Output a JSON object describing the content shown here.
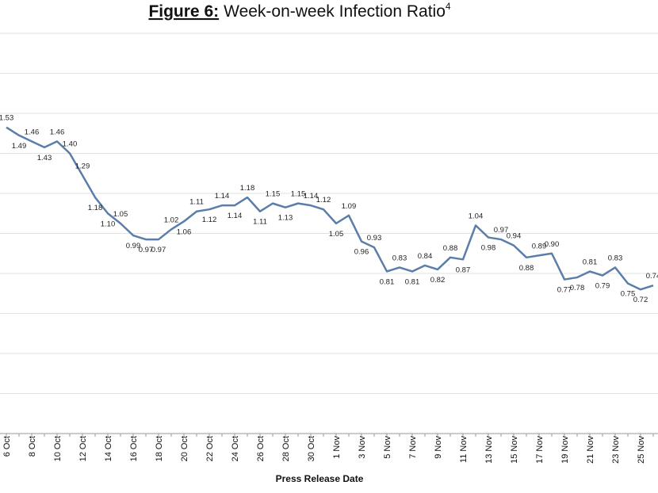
{
  "chart_data": {
    "type": "line",
    "title_prefix": "Figure 6:",
    "title": "Week-on-week Infection Ratio",
    "title_footnote": "4",
    "x_label": "Press Release Date",
    "categories": [
      "6 Oct",
      null,
      "8 Oct",
      null,
      "10 Oct",
      null,
      "12 Oct",
      null,
      "14 Oct",
      null,
      "16 Oct",
      null,
      "18 Oct",
      null,
      "20 Oct",
      null,
      "22 Oct",
      null,
      "24 Oct",
      null,
      "26 Oct",
      null,
      "28 Oct",
      null,
      "30 Oct",
      null,
      "1 Nov",
      null,
      "3 Nov",
      null,
      "5 Nov",
      null,
      "7 Nov",
      null,
      "9 Nov",
      null,
      "11 Nov",
      null,
      "13 Nov",
      null,
      "15 Nov",
      null,
      "17 Nov",
      null,
      "19 Nov",
      null,
      "21 Nov",
      null,
      "23 Nov",
      null,
      "25 Nov",
      null
    ],
    "series": [
      {
        "color": "#5a7ea8",
        "values": [
          1.53,
          1.49,
          1.46,
          1.43,
          1.46,
          1.4,
          1.29,
          1.18,
          1.1,
          1.05,
          0.99,
          0.97,
          0.97,
          1.02,
          1.06,
          1.11,
          1.12,
          1.14,
          1.14,
          1.18,
          1.11,
          1.15,
          1.13,
          1.15,
          1.14,
          1.12,
          1.05,
          1.09,
          0.96,
          0.93,
          0.81,
          0.83,
          0.81,
          0.84,
          0.82,
          0.88,
          0.87,
          1.04,
          0.98,
          0.97,
          0.94,
          0.88,
          0.89,
          0.9,
          0.77,
          0.78,
          0.81,
          0.79,
          0.83,
          0.75,
          0.72,
          0.74
        ],
        "value_labels": [
          "1.53",
          "1.49",
          "1.46",
          "1.43",
          "1.46",
          "1.40",
          "1.29",
          "1.18",
          "1.10",
          "1.05",
          "0.99",
          "0.97",
          "0.97",
          "1.02",
          "1.06",
          "1.11",
          "1.12",
          "1.14",
          "1.14",
          "1.18",
          "1.11",
          "1.15",
          "1.13",
          "1.15",
          "1.14",
          "1.12",
          "1.05",
          "1.09",
          "0.96",
          "0.93",
          "0.81",
          "0.83",
          "0.81",
          "0.84",
          "0.82",
          "0.88",
          "0.87",
          "1.04",
          "0.98",
          "0.97",
          "0.94",
          "0.88",
          "0.89",
          "0.90",
          "0.77",
          "0.78",
          "0.81",
          "0.79",
          "0.83",
          "0.75",
          "0.72",
          "0.74"
        ]
      }
    ],
    "ylim": [
      0,
      2
    ],
    "yticks": [
      0,
      0.2,
      0.4,
      0.6,
      0.8,
      1,
      1.2,
      1.4,
      1.6,
      1.8,
      2
    ],
    "grid": true
  }
}
